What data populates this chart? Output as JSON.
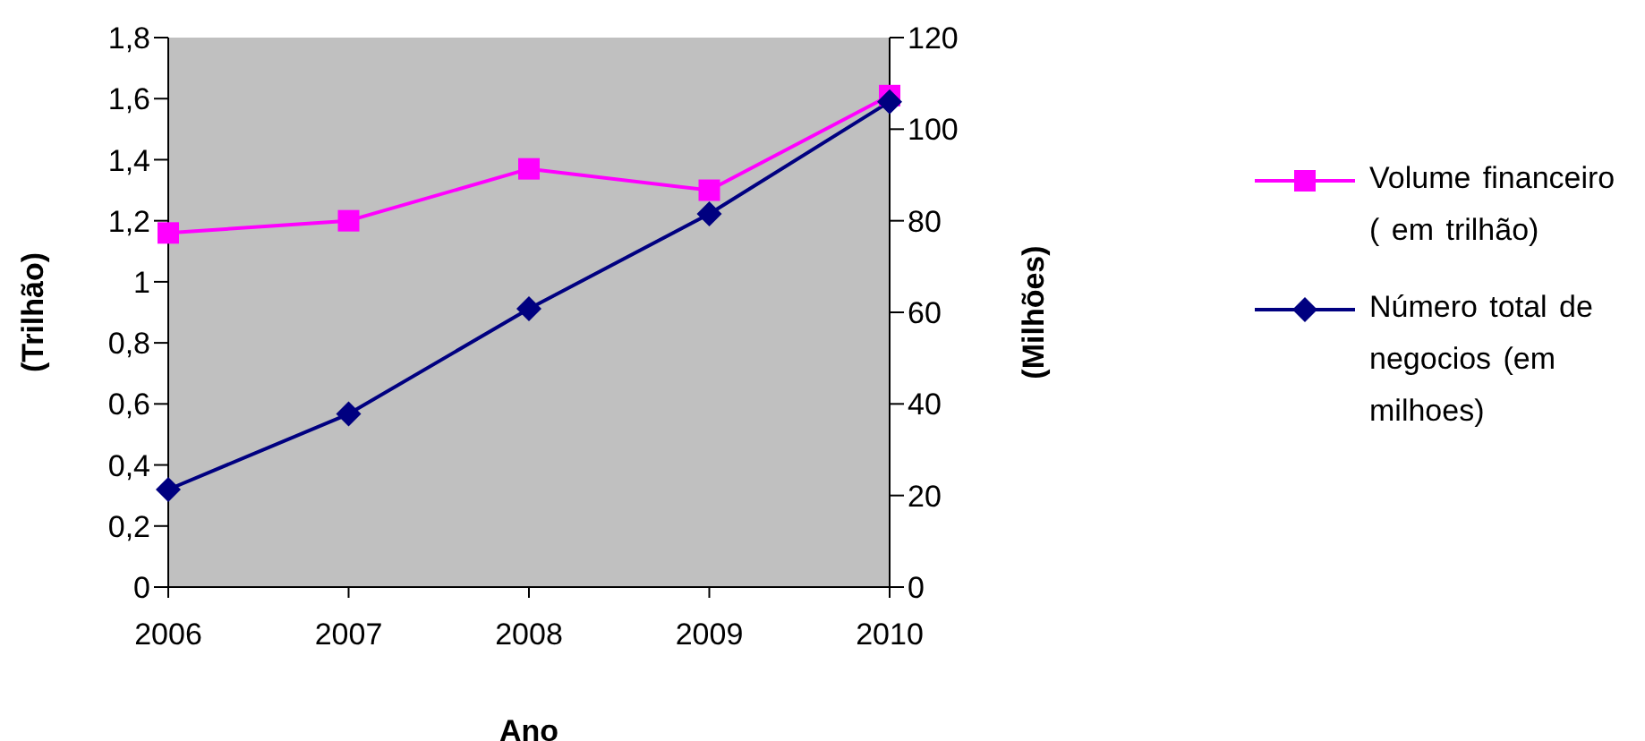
{
  "chart_data": {
    "type": "line",
    "xlabel": "Ano",
    "ylabel": "(Trilhão)",
    "y2label": "(Milhões)",
    "categories": [
      "2006",
      "2007",
      "2008",
      "2009",
      "2010"
    ],
    "series": [
      {
        "name": "Volume financeiro  ( em trilhão)",
        "color": "#ff00ff",
        "marker": "square",
        "values": [
          1.16,
          1.2,
          1.37,
          1.3,
          1.61
        ]
      },
      {
        "name": "Número total de negocios (em milhoes)",
        "color": "#000080",
        "marker": "diamond",
        "axis": "y2",
        "values": [
          21.3,
          37.8,
          60.8,
          81.5,
          106
        ]
      }
    ],
    "ylim": [
      0,
      1.8
    ],
    "yticks": [
      0,
      {
        "value": 0.2,
        "label": "0,2"
      },
      {
        "value": 0.4,
        "label": "0,4"
      },
      {
        "value": 0.6,
        "label": "0,6"
      },
      {
        "value": 0.8,
        "label": "0,8"
      },
      1,
      {
        "value": 1.2,
        "label": "1,2"
      },
      {
        "value": 1.4,
        "label": "1,4"
      },
      {
        "value": 1.6,
        "label": "1,6"
      },
      {
        "value": 1.8,
        "label": "1,8"
      }
    ],
    "y2lim": [
      0,
      120
    ],
    "y2ticks": [
      0,
      20,
      40,
      60,
      80,
      100,
      120
    ],
    "grid": false,
    "legend": "right"
  }
}
